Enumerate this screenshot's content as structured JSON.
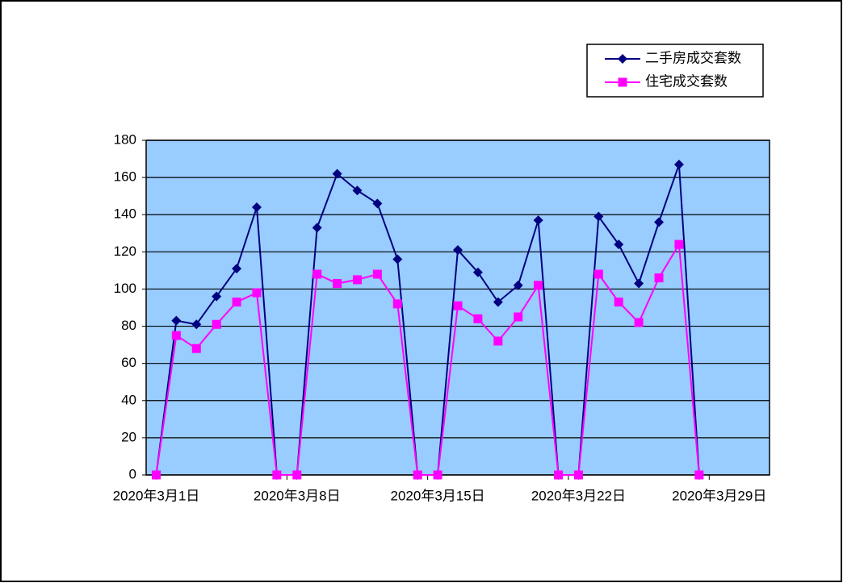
{
  "chart_data": {
    "type": "line",
    "categories": [
      "2020年3月1日",
      null,
      null,
      null,
      null,
      null,
      null,
      "2020年3月8日",
      null,
      null,
      null,
      null,
      null,
      null,
      "2020年3月15日",
      null,
      null,
      null,
      null,
      null,
      null,
      "2020年3月22日",
      null,
      null,
      null,
      null,
      null,
      null,
      "2020年3月29日",
      null,
      null
    ],
    "series": [
      {
        "name": "二手房成交套数",
        "color": "#000080",
        "marker": "diamond",
        "values": [
          0,
          83,
          81,
          96,
          111,
          144,
          0,
          0,
          133,
          162,
          153,
          146,
          116,
          0,
          0,
          121,
          109,
          93,
          102,
          137,
          0,
          0,
          139,
          124,
          103,
          136,
          167,
          0,
          null,
          null,
          null
        ]
      },
      {
        "name": "住宅成交套数",
        "color": "#ff00ff",
        "marker": "square",
        "values": [
          0,
          75,
          68,
          81,
          93,
          98,
          0,
          0,
          108,
          103,
          105,
          108,
          92,
          0,
          0,
          91,
          84,
          72,
          85,
          102,
          0,
          0,
          108,
          93,
          82,
          106,
          124,
          0,
          null,
          null,
          null
        ]
      }
    ],
    "ylim": [
      0,
      180
    ],
    "yticks": [
      0,
      20,
      40,
      60,
      80,
      100,
      120,
      140,
      160,
      180
    ],
    "grid": true,
    "legend": "top-right",
    "plot_background": "#99ccff"
  }
}
